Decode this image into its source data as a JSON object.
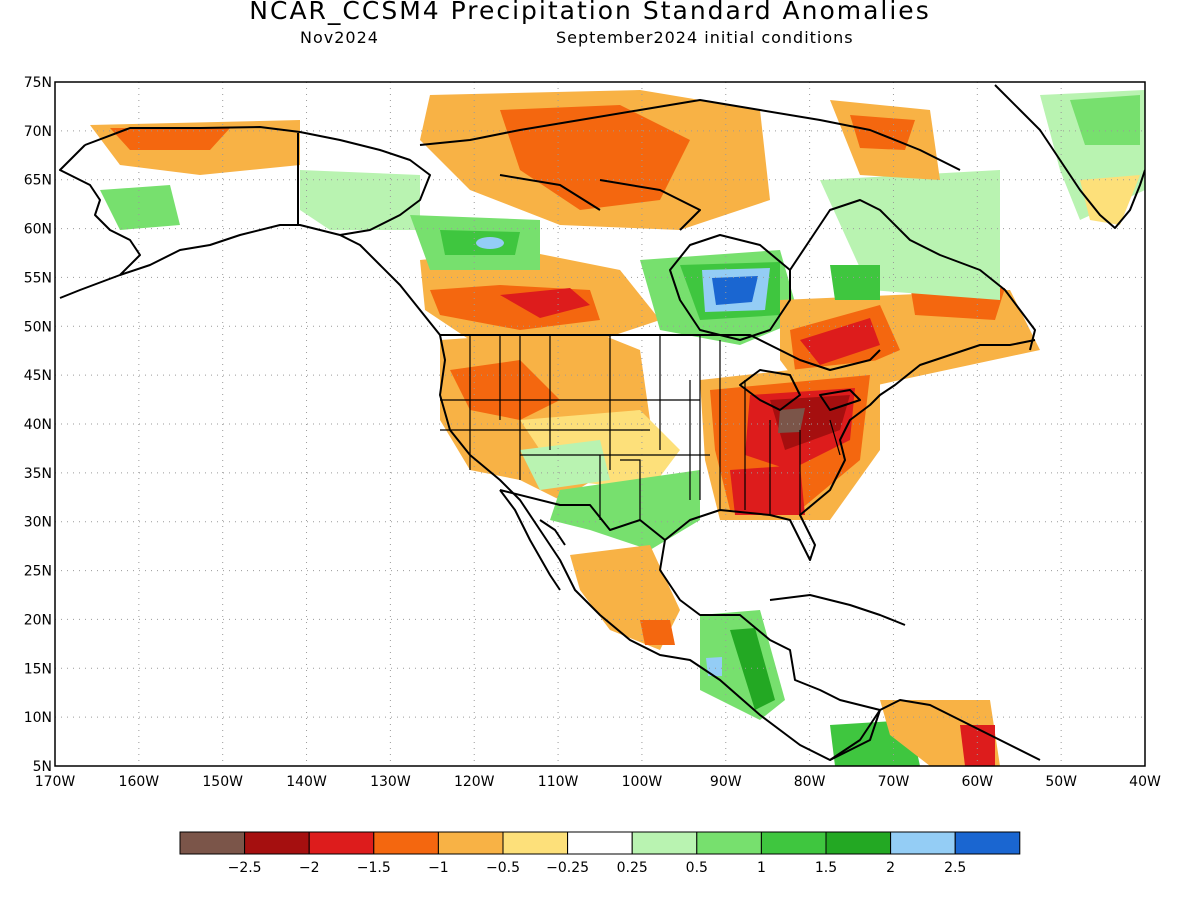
{
  "title": "NCAR_CCSM4 Precipitation Standard Anomalies",
  "subtitle_left": "Nov2024",
  "subtitle_right": "September2024 initial conditions",
  "map": {
    "lat_labels": [
      "75N",
      "70N",
      "65N",
      "60N",
      "55N",
      "50N",
      "45N",
      "40N",
      "35N",
      "30N",
      "25N",
      "20N",
      "15N",
      "10N",
      "5N"
    ],
    "lon_labels": [
      "170W",
      "160W",
      "150W",
      "140W",
      "130W",
      "120W",
      "110W",
      "100W",
      "90W",
      "80W",
      "70W",
      "60W",
      "50W",
      "40W"
    ],
    "lat_values": [
      75,
      70,
      65,
      60,
      55,
      50,
      45,
      40,
      35,
      30,
      25,
      20,
      15,
      10,
      5
    ],
    "lon_values": [
      -170,
      -160,
      -150,
      -140,
      -130,
      -120,
      -110,
      -100,
      -90,
      -80,
      -70,
      -60,
      -50,
      -40
    ]
  },
  "legend": {
    "colors": [
      "#7b5549",
      "#a50f0f",
      "#dd1c1c",
      "#f4670f",
      "#f8b245",
      "#fde07a",
      "#ffffff",
      "#b9f3b1",
      "#77e06e",
      "#3fc63f",
      "#23a823",
      "#94cdf5",
      "#1a66d1"
    ],
    "labels": [
      "−2.5",
      "−2",
      "−1.5",
      "−1",
      "−0.5",
      "−0.25",
      "0.25",
      "0.5",
      "1",
      "1.5",
      "2",
      "2.5"
    ]
  },
  "colors": {
    "land_outline": "#000000",
    "grid": "#9a9a9a"
  }
}
